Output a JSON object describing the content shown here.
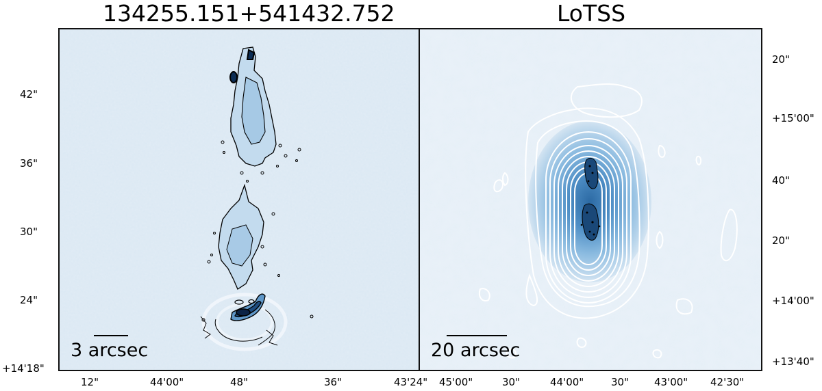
{
  "panels": [
    {
      "title": "134255.151+541432.752",
      "scale_label": "3 arcsec",
      "y_ticks": [
        "42\"",
        "36\"",
        "30\"",
        "24\"",
        "+14'18\""
      ],
      "x_ticks": [
        "12\"",
        "44'00\"",
        "48\"",
        "36\"",
        "43'24\""
      ]
    },
    {
      "title": "LoTSS",
      "scale_label": "20 arcsec",
      "y_ticks": [
        "20\"",
        "+15'00\"",
        "40\"",
        "20\"",
        "+14'00\"",
        "+13'40\""
      ],
      "x_ticks": [
        "45'00\"",
        "30\"",
        "44'00\"",
        "30\"",
        "43'00\"",
        "42'30\""
      ]
    }
  ],
  "colors": {
    "background_map": "#dfeaf4",
    "emission_low": "#b7d3ea",
    "emission_mid": "#7fb1d8",
    "emission_high": "#2f6ea8",
    "contour_dark": "#000000",
    "contour_light": "#ffffff"
  }
}
